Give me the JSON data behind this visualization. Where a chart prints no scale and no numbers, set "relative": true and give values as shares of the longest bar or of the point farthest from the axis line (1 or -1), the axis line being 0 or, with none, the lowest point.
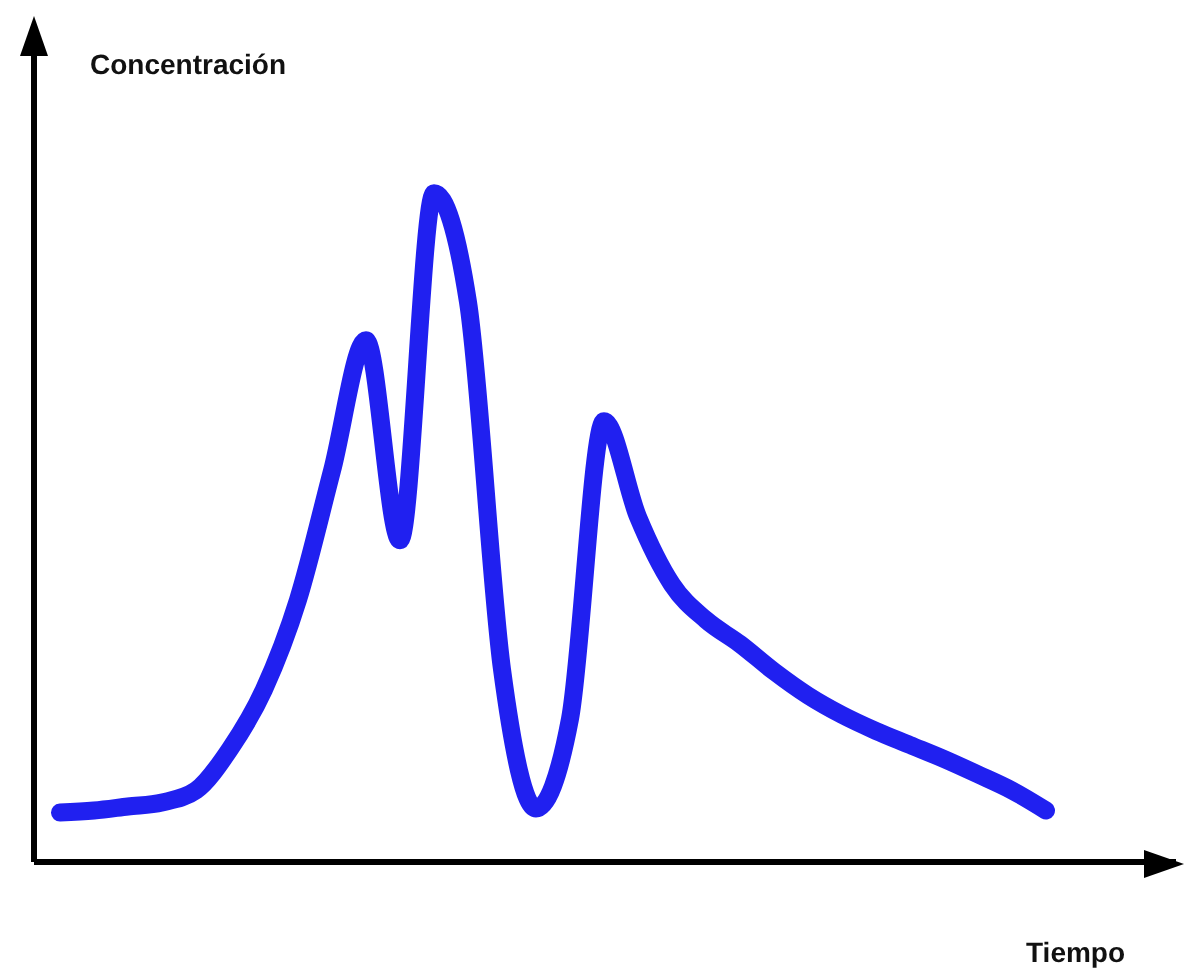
{
  "chart_data": {
    "type": "line",
    "xlabel": "Tiempo",
    "ylabel": "Concentración",
    "relative": true,
    "categories": [
      null,
      null,
      null,
      null,
      null,
      null,
      null,
      null,
      null,
      null,
      null,
      null,
      null,
      null,
      null,
      null,
      null,
      null,
      null,
      null,
      null,
      null,
      null,
      null,
      null,
      null,
      null,
      null,
      null,
      null
    ],
    "series": [
      {
        "color": "#2020f0",
        "values": [
          0.074,
          0.077,
          0.083,
          0.089,
          0.107,
          0.169,
          0.258,
          0.392,
          0.585,
          0.78,
          0.481,
          1,
          0.837,
          0.288,
          0.08,
          0.214,
          0.659,
          0.516,
          0.415,
          0.362,
          0.326,
          0.285,
          0.249,
          0.22,
          0.196,
          0.175,
          0.154,
          0.131,
          0.107,
          0.077
        ]
      }
    ]
  }
}
